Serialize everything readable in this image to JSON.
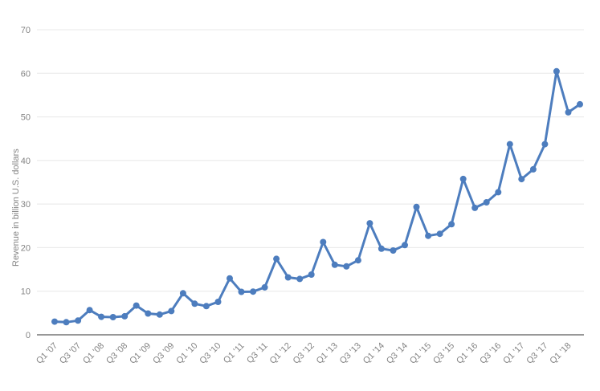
{
  "chart": {
    "ylabel": "Revenue in billion U.S. dollars"
  },
  "chart_data": {
    "type": "line",
    "title": "",
    "xlabel": "",
    "ylabel": "Revenue in billion U.S. dollars",
    "ylim": [
      0,
      70
    ],
    "y_tick_step": 10,
    "y_tick_labels": [
      "0",
      "10",
      "20",
      "30",
      "40",
      "50",
      "60",
      "70"
    ],
    "grid": true,
    "legend_position": "none",
    "categories": [
      "Q1 '07",
      "Q2 '07",
      "Q3 '07",
      "Q4 '07",
      "Q1 '08",
      "Q2 '08",
      "Q3 '08",
      "Q4 '08",
      "Q1 '09",
      "Q2 '09",
      "Q3 '09",
      "Q4 '09",
      "Q1 '10",
      "Q2 '10",
      "Q3 '10",
      "Q4 '10",
      "Q1 '11",
      "Q2 '11",
      "Q3 '11",
      "Q4 '11",
      "Q1 '12",
      "Q2 '12",
      "Q3 '12",
      "Q4 '12",
      "Q1 '13",
      "Q2 '13",
      "Q3 '13",
      "Q4 '13",
      "Q1 '14",
      "Q2 '14",
      "Q3 '14",
      "Q4 '14",
      "Q1 '15",
      "Q2 '15",
      "Q3 '15",
      "Q4 '15",
      "Q1 '16",
      "Q2 '16",
      "Q3 '16",
      "Q4 '16",
      "Q1 '17",
      "Q2 '17",
      "Q3 '17",
      "Q4 '17",
      "Q1 '18",
      "Q2 '18"
    ],
    "x_tick_every": 2,
    "x_tick_labels": [
      "Q1 '07",
      "Q3 '07",
      "Q1 '08",
      "Q3 '08",
      "Q1 '09",
      "Q3 '09",
      "Q1 '10",
      "Q3 '10",
      "Q1 '11",
      "Q3 '11",
      "Q1 '12",
      "Q3 '12",
      "Q1 '13",
      "Q3 '13",
      "Q1 '14",
      "Q3 '14",
      "Q1 '15",
      "Q3 '15",
      "Q1 '16",
      "Q3 '16",
      "Q1 '17",
      "Q3 '17",
      "Q1 '18"
    ],
    "series": [
      {
        "name": "Revenue",
        "values": [
          3.02,
          2.89,
          3.26,
          5.67,
          4.13,
          4.06,
          4.26,
          6.7,
          4.89,
          4.65,
          5.45,
          9.52,
          7.13,
          6.57,
          7.56,
          12.95,
          9.86,
          9.91,
          10.88,
          17.43,
          13.18,
          12.83,
          13.81,
          21.27,
          16.07,
          15.7,
          17.09,
          25.59,
          19.74,
          19.34,
          20.58,
          29.33,
          22.72,
          23.18,
          25.36,
          35.75,
          29.13,
          30.4,
          32.71,
          43.74,
          35.71,
          37.96,
          43.74,
          60.45,
          51.04,
          52.89
        ]
      }
    ],
    "colors": {
      "line": "#4d7dbe",
      "marker": "#4d7dbe",
      "grid": "#e8e8e8",
      "axis": "#777777",
      "tick_text": "#848484"
    }
  }
}
